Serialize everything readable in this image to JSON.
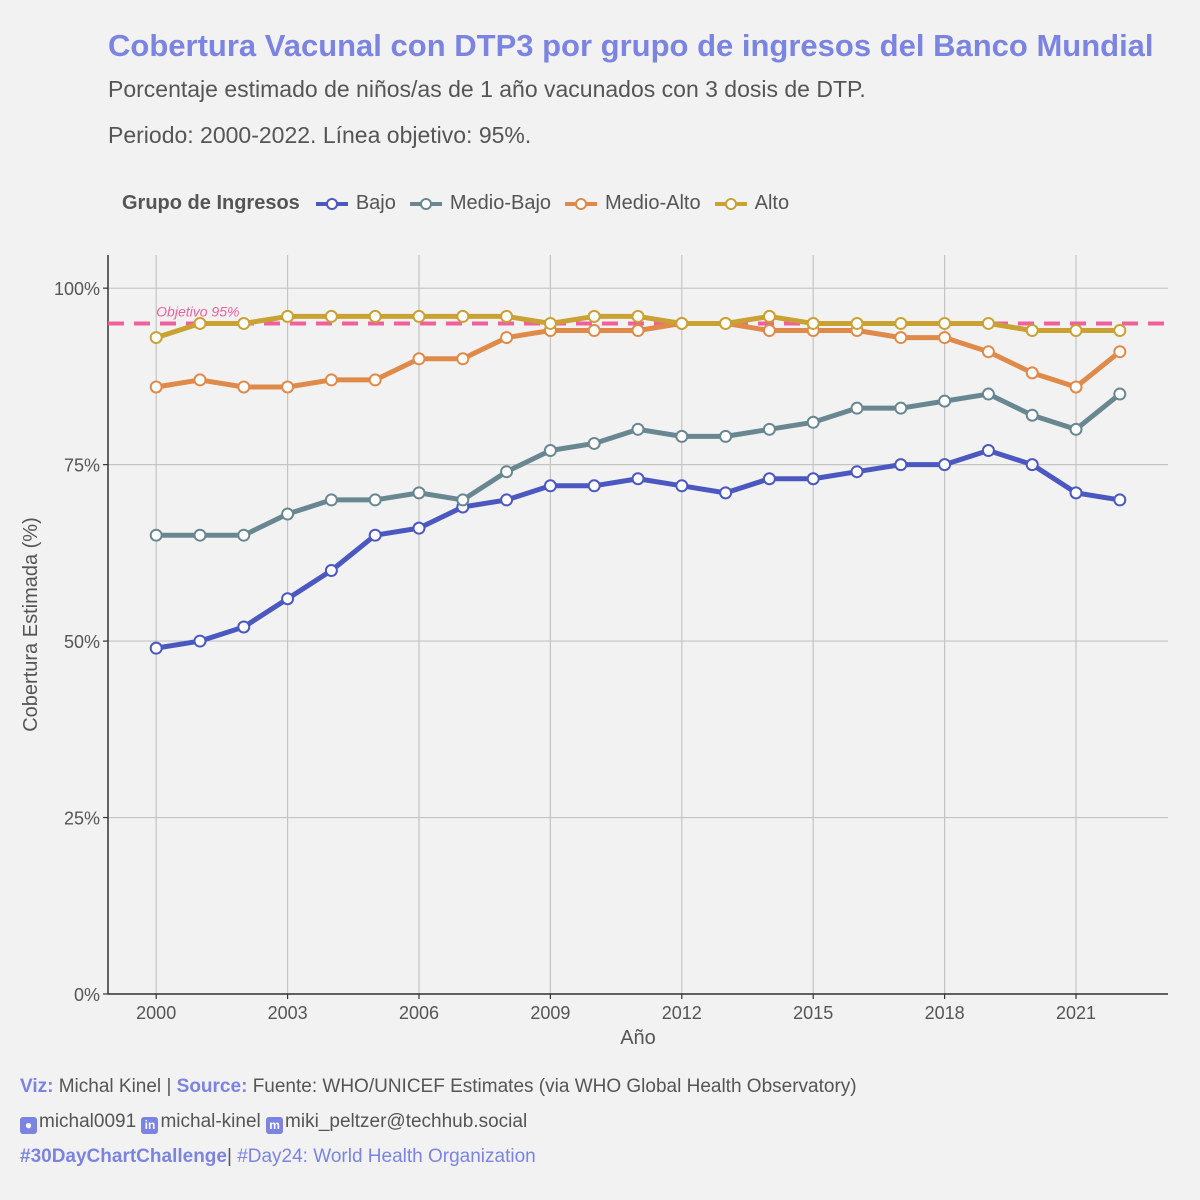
{
  "title": "Cobertura Vacunal con DTP3 por grupo de ingresos del Banco Mundial",
  "subtitle1": "Porcentaje estimado de niños/as de 1 año vacunados con 3 dosis de DTP.",
  "subtitle2": "Periodo: 2000-2022. Línea objetivo: 95%.",
  "legend": {
    "title": "Grupo de Ingresos",
    "items": [
      {
        "label": "Bajo",
        "color": "#4a58c0"
      },
      {
        "label": "Medio-Bajo",
        "color": "#688790"
      },
      {
        "label": "Medio-Alto",
        "color": "#e08a4a"
      },
      {
        "label": "Alto",
        "color": "#c9a233"
      }
    ]
  },
  "caption": {
    "viz_label": "Viz:",
    "viz_value": "Michal Kinel",
    "sep1": "|",
    "source_label": "Source:",
    "source_value": "Fuente: WHO/UNICEF Estimates (via WHO Global Health Observatory)",
    "github_icon": "github-icon",
    "github": "michal0091",
    "linkedin_icon": "linkedin-icon",
    "linkedin": "michal-kinel",
    "mastodon_icon": "mastodon-icon",
    "mastodon": "miki_peltzer@techhub.social",
    "hashtag1": "#30DayChartChallenge",
    "sep2": "|",
    "hashtag2": "#Day24: World Health Organization"
  },
  "chart_data": {
    "type": "line",
    "xlabel": "Año",
    "ylabel": "Cobertura Estimada (%)",
    "x": [
      2000,
      2001,
      2002,
      2003,
      2004,
      2005,
      2006,
      2007,
      2008,
      2009,
      2010,
      2011,
      2012,
      2013,
      2014,
      2015,
      2016,
      2017,
      2018,
      2019,
      2020,
      2021,
      2022
    ],
    "xticks": [
      2000,
      2003,
      2006,
      2009,
      2012,
      2015,
      2018,
      2021
    ],
    "xtick_labels": [
      "2000",
      "2003",
      "2006",
      "2009",
      "2012",
      "2015",
      "2018",
      "2021"
    ],
    "yticks": [
      0,
      25,
      50,
      75,
      100
    ],
    "ytick_labels": [
      "0%",
      "25%",
      "50%",
      "75%",
      "100%"
    ],
    "xlim": [
      1998.9,
      2023.1
    ],
    "ylim": [
      0,
      104.7
    ],
    "grid": true,
    "target": {
      "value": 95,
      "label": "Objetivo 95%",
      "color": "#f0609a"
    },
    "series": [
      {
        "name": "Bajo",
        "color": "#4a58c0",
        "values": [
          49,
          50,
          52,
          56,
          60,
          65,
          66,
          69,
          70,
          72,
          72,
          73,
          72,
          71,
          73,
          73,
          74,
          75,
          75,
          77,
          75,
          71,
          70
        ]
      },
      {
        "name": "Medio-Bajo",
        "color": "#688790",
        "values": [
          65,
          65,
          65,
          68,
          70,
          70,
          71,
          70,
          74,
          77,
          78,
          80,
          79,
          79,
          80,
          81,
          83,
          83,
          84,
          85,
          82,
          80,
          85
        ]
      },
      {
        "name": "Medio-Alto",
        "color": "#e08a4a",
        "values": [
          86,
          87,
          86,
          86,
          87,
          87,
          90,
          90,
          93,
          94,
          94,
          94,
          95,
          95,
          94,
          94,
          94,
          93,
          93,
          91,
          88,
          86,
          91
        ]
      },
      {
        "name": "Alto",
        "color": "#c9a233",
        "values": [
          93,
          95,
          95,
          96,
          96,
          96,
          96,
          96,
          96,
          95,
          96,
          96,
          95,
          95,
          96,
          95,
          95,
          95,
          95,
          95,
          94,
          94,
          94
        ]
      }
    ]
  }
}
